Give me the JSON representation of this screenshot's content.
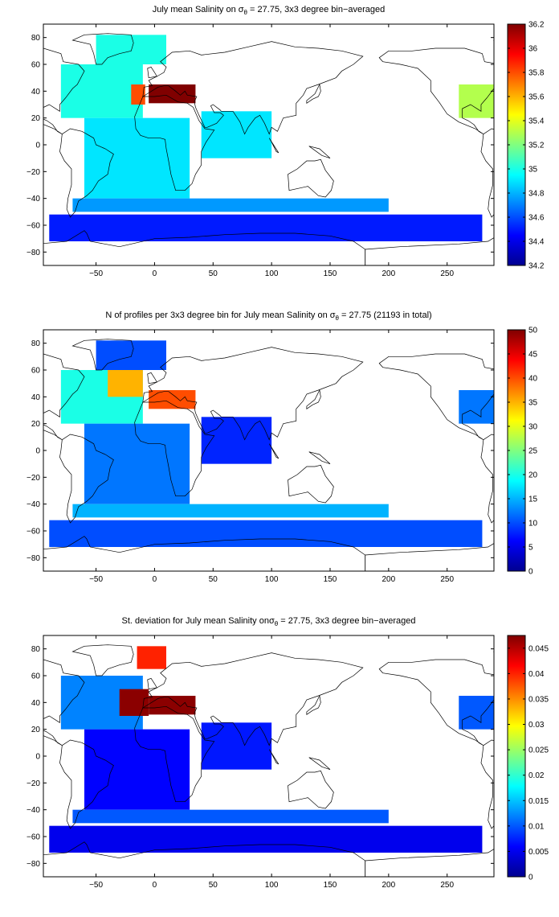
{
  "colors": {
    "jet": [
      "#00008f",
      "#0000ff",
      "#0080ff",
      "#00ffff",
      "#80ff80",
      "#ffff00",
      "#ff8000",
      "#ff0000",
      "#800000"
    ],
    "land_outline": "#000000"
  },
  "chart_data": [
    {
      "type": "heatmap",
      "title_parts": {
        "pre": "July mean Salinity on ",
        "sym": "σ",
        "sub": "θ",
        "post": " = 27.75, 3x3 degree bin−averaged"
      },
      "xlim": [
        -95,
        290
      ],
      "ylim": [
        -90,
        90
      ],
      "x_ticks": [
        -50,
        0,
        50,
        100,
        150,
        200,
        250
      ],
      "y_ticks": [
        80,
        60,
        40,
        20,
        0,
        -20,
        -40,
        -60,
        -80
      ],
      "colorbar": {
        "min": 34.2,
        "max": 36.2,
        "ticks": [
          "36.2",
          "36",
          "35.8",
          "35.6",
          "35.4",
          "35.2",
          "35",
          "34.8",
          "34.6",
          "34.4",
          "34.2"
        ]
      },
      "regions": [
        {
          "lon": [
            -80,
            -10
          ],
          "lat": [
            20,
            60
          ],
          "value": 35.0
        },
        {
          "lon": [
            -20,
            -8
          ],
          "lat": [
            30,
            45
          ],
          "value": 35.8
        },
        {
          "lon": [
            -5,
            35
          ],
          "lat": [
            31,
            45
          ],
          "value": 36.2
        },
        {
          "lon": [
            -60,
            30
          ],
          "lat": [
            -40,
            20
          ],
          "value": 34.9
        },
        {
          "lon": [
            -50,
            10
          ],
          "lat": [
            60,
            82
          ],
          "value": 35.0
        },
        {
          "lon": [
            40,
            100
          ],
          "lat": [
            -10,
            25
          ],
          "value": 34.9
        },
        {
          "lon": [
            -70,
            200
          ],
          "lat": [
            -50,
            -40
          ],
          "value": 34.75
        },
        {
          "lon": [
            -90,
            280
          ],
          "lat": [
            -72,
            -52
          ],
          "value": 34.5
        },
        {
          "lon": [
            260,
            290
          ],
          "lat": [
            20,
            45
          ],
          "value": 35.3
        }
      ]
    },
    {
      "type": "heatmap",
      "title_parts": {
        "pre": "N of profiles per 3x3 degree bin for July mean Salinity on ",
        "sym": "σ",
        "sub": "θ",
        "post": " = 27.75 (21193 in total)"
      },
      "total_profiles": 21193,
      "xlim": [
        -95,
        290
      ],
      "ylim": [
        -90,
        90
      ],
      "x_ticks": [
        -50,
        0,
        50,
        100,
        150,
        200,
        250
      ],
      "y_ticks": [
        80,
        60,
        40,
        20,
        0,
        -20,
        -40,
        -60,
        -80
      ],
      "colorbar": {
        "min": 0,
        "max": 50,
        "ticks": [
          "50",
          "45",
          "40",
          "35",
          "30",
          "25",
          "20",
          "15",
          "10",
          "5",
          "0"
        ]
      },
      "regions": [
        {
          "lon": [
            -80,
            -10
          ],
          "lat": [
            20,
            60
          ],
          "value": 20
        },
        {
          "lon": [
            -40,
            -10
          ],
          "lat": [
            40,
            65
          ],
          "value": 35
        },
        {
          "lon": [
            -5,
            35
          ],
          "lat": [
            31,
            45
          ],
          "value": 40
        },
        {
          "lon": [
            -60,
            30
          ],
          "lat": [
            -40,
            20
          ],
          "value": 12
        },
        {
          "lon": [
            -50,
            10
          ],
          "lat": [
            60,
            82
          ],
          "value": 10
        },
        {
          "lon": [
            40,
            100
          ],
          "lat": [
            -10,
            25
          ],
          "value": 8
        },
        {
          "lon": [
            -70,
            200
          ],
          "lat": [
            -50,
            -40
          ],
          "value": 15
        },
        {
          "lon": [
            -90,
            280
          ],
          "lat": [
            -72,
            -52
          ],
          "value": 10
        },
        {
          "lon": [
            260,
            290
          ],
          "lat": [
            20,
            45
          ],
          "value": 12
        }
      ]
    },
    {
      "type": "heatmap",
      "title_parts": {
        "pre": "St. deviation for July mean Salinity on",
        "sym": "σ",
        "sub": "θ",
        "post": " = 27.75, 3x3 degree bin−averaged"
      },
      "xlim": [
        -95,
        290
      ],
      "ylim": [
        -90,
        90
      ],
      "x_ticks": [
        -50,
        0,
        50,
        100,
        150,
        200,
        250
      ],
      "y_ticks": [
        80,
        60,
        40,
        20,
        0,
        -20,
        -40,
        -60,
        -80
      ],
      "colorbar": {
        "min": 0,
        "max": 0.0475,
        "ticks": [
          "0.045",
          "0.04",
          "0.035",
          "0.03",
          "0.025",
          "0.02",
          "0.015",
          "0.01",
          "0.005",
          "0"
        ]
      },
      "regions": [
        {
          "lon": [
            -80,
            -10
          ],
          "lat": [
            20,
            60
          ],
          "value": 0.012
        },
        {
          "lon": [
            -30,
            -5
          ],
          "lat": [
            30,
            50
          ],
          "value": 0.047
        },
        {
          "lon": [
            -5,
            35
          ],
          "lat": [
            31,
            45
          ],
          "value": 0.047
        },
        {
          "lon": [
            -60,
            30
          ],
          "lat": [
            -40,
            20
          ],
          "value": 0.006
        },
        {
          "lon": [
            -15,
            10
          ],
          "lat": [
            65,
            82
          ],
          "value": 0.04
        },
        {
          "lon": [
            40,
            100
          ],
          "lat": [
            -10,
            25
          ],
          "value": 0.007
        },
        {
          "lon": [
            -70,
            200
          ],
          "lat": [
            -50,
            -40
          ],
          "value": 0.01
        },
        {
          "lon": [
            -90,
            280
          ],
          "lat": [
            -72,
            -52
          ],
          "value": 0.005
        },
        {
          "lon": [
            260,
            290
          ],
          "lat": [
            20,
            45
          ],
          "value": 0.01
        }
      ]
    }
  ]
}
